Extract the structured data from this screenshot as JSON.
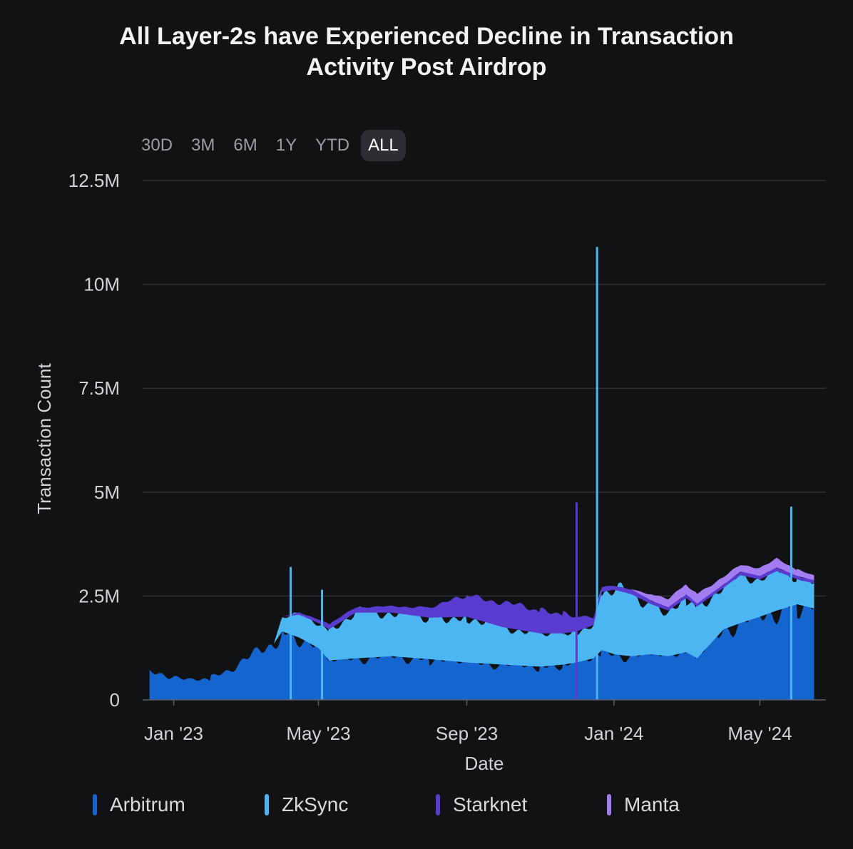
{
  "chart_data": {
    "type": "area",
    "stacked": true,
    "title": [
      "All Layer-2s have Experienced Decline in Transaction",
      "Activity Post Airdrop"
    ],
    "xlabel": "Date",
    "ylabel": "Transaction Count",
    "ylim": [
      0,
      12500000
    ],
    "y_ticks": [
      {
        "value": 0,
        "label": "0"
      },
      {
        "value": 2500000,
        "label": "2.5M"
      },
      {
        "value": 5000000,
        "label": "5M"
      },
      {
        "value": 7500000,
        "label": "7.5M"
      },
      {
        "value": 10000000,
        "label": "10M"
      },
      {
        "value": 12500000,
        "label": "12.5M"
      }
    ],
    "x_ticks": [
      {
        "date": "2023-01-01",
        "label": "Jan '23"
      },
      {
        "date": "2023-05-01",
        "label": "May '23"
      },
      {
        "date": "2023-09-01",
        "label": "Sep '23"
      },
      {
        "date": "2024-01-01",
        "label": "Jan '24"
      },
      {
        "date": "2024-05-01",
        "label": "May '24"
      }
    ],
    "xlim": [
      "2022-12-11",
      "2024-06-20"
    ],
    "grid": true,
    "legend_position": "bottom",
    "x": [
      "2022-12-12",
      "2023-01-01",
      "2023-01-15",
      "2023-02-01",
      "2023-02-15",
      "2023-03-01",
      "2023-03-15",
      "2023-03-25",
      "2023-04-01",
      "2023-04-15",
      "2023-05-01",
      "2023-05-10",
      "2023-06-01",
      "2023-07-01",
      "2023-08-01",
      "2023-09-01",
      "2023-10-01",
      "2023-11-01",
      "2023-11-20",
      "2023-12-01",
      "2023-12-15",
      "2023-12-22",
      "2024-01-01",
      "2024-01-15",
      "2024-02-01",
      "2024-02-15",
      "2024-03-01",
      "2024-03-10",
      "2024-04-01",
      "2024-04-15",
      "2024-05-01",
      "2024-05-15",
      "2024-06-01",
      "2024-06-15"
    ],
    "series": [
      {
        "name": "Arbitrum",
        "color": "#1565d0",
        "values": [
          650000,
          580000,
          450000,
          520000,
          700000,
          1000000,
          1150000,
          1350000,
          1650000,
          1500000,
          1250000,
          950000,
          1000000,
          1050000,
          980000,
          900000,
          850000,
          800000,
          850000,
          900000,
          1000000,
          1200000,
          1100000,
          1050000,
          1100000,
          1050000,
          1150000,
          1000000,
          1700000,
          1850000,
          2000000,
          2150000,
          2300000,
          2200000
        ]
      },
      {
        "name": "ZkSync",
        "color": "#4cb6f2",
        "values": [
          0,
          0,
          0,
          0,
          0,
          0,
          0,
          0,
          350000,
          550000,
          600000,
          750000,
          1100000,
          1050000,
          1000000,
          1100000,
          900000,
          800000,
          750000,
          750000,
          800000,
          1400000,
          1550000,
          1500000,
          1200000,
          1100000,
          1300000,
          1250000,
          1000000,
          1150000,
          900000,
          950000,
          600000,
          600000
        ]
      },
      {
        "name": "Starknet",
        "color": "#5a3bd0",
        "values": [
          0,
          0,
          0,
          0,
          0,
          0,
          0,
          0,
          0,
          60000,
          80000,
          120000,
          130000,
          150000,
          250000,
          500000,
          600000,
          550000,
          480000,
          350000,
          180000,
          110000,
          100000,
          120000,
          90000,
          80000,
          90000,
          70000,
          80000,
          90000,
          80000,
          90000,
          80000,
          80000
        ]
      },
      {
        "name": "Manta",
        "color": "#a27cf0",
        "values": [
          0,
          0,
          0,
          0,
          0,
          0,
          0,
          0,
          0,
          0,
          0,
          0,
          0,
          0,
          0,
          0,
          0,
          0,
          0,
          0,
          0,
          0,
          0,
          0,
          150000,
          220000,
          250000,
          240000,
          180000,
          160000,
          200000,
          200000,
          150000,
          120000
        ]
      }
    ],
    "spikes": [
      {
        "date": "2023-04-08",
        "series": "ZkSync",
        "total": 3200000
      },
      {
        "date": "2023-05-04",
        "series": "ZkSync",
        "total": 2650000
      },
      {
        "date": "2023-12-01",
        "series": "Starknet",
        "total": 4750000
      },
      {
        "date": "2023-12-18",
        "series": "ZkSync",
        "total": 10900000
      },
      {
        "date": "2024-05-27",
        "series": "ZkSync",
        "total": 4650000
      }
    ]
  },
  "range_buttons": [
    "30D",
    "3M",
    "6M",
    "1Y",
    "YTD",
    "ALL"
  ],
  "active_range": "ALL",
  "legend": [
    {
      "label": "Arbitrum",
      "color": "#1565d0"
    },
    {
      "label": "ZkSync",
      "color": "#4cb6f2"
    },
    {
      "label": "Starknet",
      "color": "#5a3bd0"
    },
    {
      "label": "Manta",
      "color": "#a27cf0"
    }
  ]
}
